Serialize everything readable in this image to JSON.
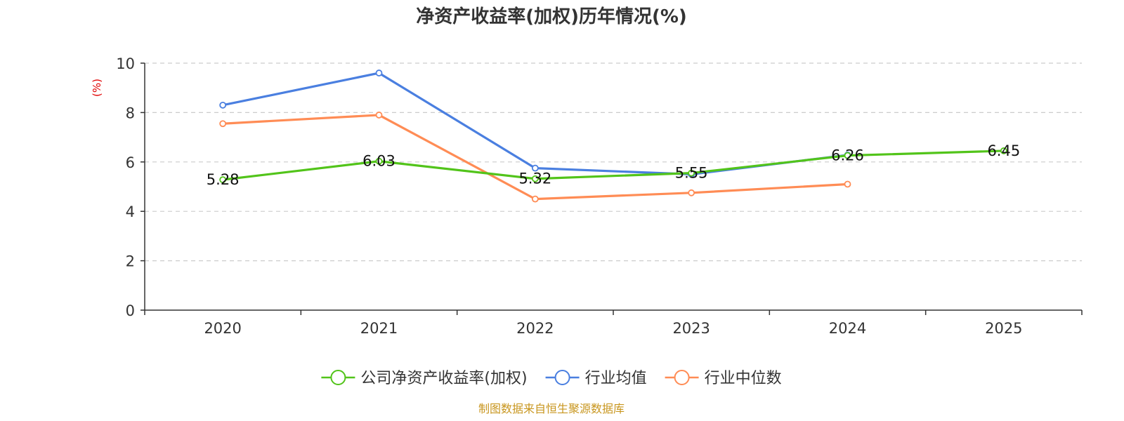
{
  "chart_data": {
    "type": "line",
    "title": "净资产收益率(加权)历年情况(%)",
    "xlabel": "",
    "ylabel": "(%)",
    "categories": [
      "2020",
      "2021",
      "2022",
      "2023",
      "2024",
      "2025"
    ],
    "ylim": [
      0,
      10
    ],
    "yticks": [
      0,
      2,
      4,
      6,
      8,
      10
    ],
    "grid": true,
    "legend_position": "bottom",
    "series": [
      {
        "name": "公司净资产收益率(加权)",
        "color": "#52c41a",
        "values": [
          5.28,
          6.03,
          5.32,
          5.55,
          6.26,
          6.45
        ],
        "labels": [
          "5.28",
          "6.03",
          "5.32",
          "5.55",
          "6.26",
          "6.45"
        ]
      },
      {
        "name": "行业均值",
        "color": "#4a7fe0",
        "values": [
          8.3,
          9.6,
          5.75,
          5.5,
          6.28,
          null
        ]
      },
      {
        "name": "行业中位数",
        "color": "#ff8c55",
        "values": [
          7.55,
          7.9,
          4.5,
          4.75,
          5.1,
          null
        ]
      }
    ],
    "source": "制图数据来自恒生聚源数据库"
  }
}
